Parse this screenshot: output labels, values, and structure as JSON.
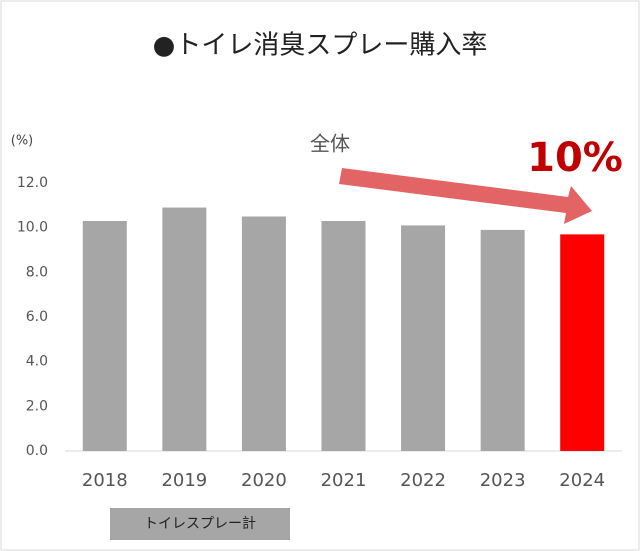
{
  "chart_data": {
    "type": "bar",
    "title": "●トイレ消臭スプレー購入率",
    "y_label": "(%)",
    "categories": [
      "2018",
      "2019",
      "2020",
      "2021",
      "2022",
      "2023",
      "2024"
    ],
    "values": [
      10.3,
      10.9,
      10.5,
      10.3,
      10.1,
      9.9,
      9.7
    ],
    "colors": [
      "#a6a6a6",
      "#a6a6a6",
      "#a6a6a6",
      "#a6a6a6",
      "#a6a6a6",
      "#a6a6a6",
      "#ff0000"
    ],
    "ylim": [
      0,
      12
    ],
    "yticks": [
      {
        "value": 0,
        "label": "0.0"
      },
      {
        "value": 2,
        "label": "2.0"
      },
      {
        "value": 4,
        "label": "4.0"
      },
      {
        "value": 6,
        "label": "6.0"
      },
      {
        "value": 8,
        "label": "8.0"
      },
      {
        "value": 10,
        "label": "10.0"
      },
      {
        "value": 12,
        "label": "12.0"
      }
    ],
    "annotations": [
      "全体",
      "10%"
    ],
    "legend_label": "トイレスプレー計"
  }
}
